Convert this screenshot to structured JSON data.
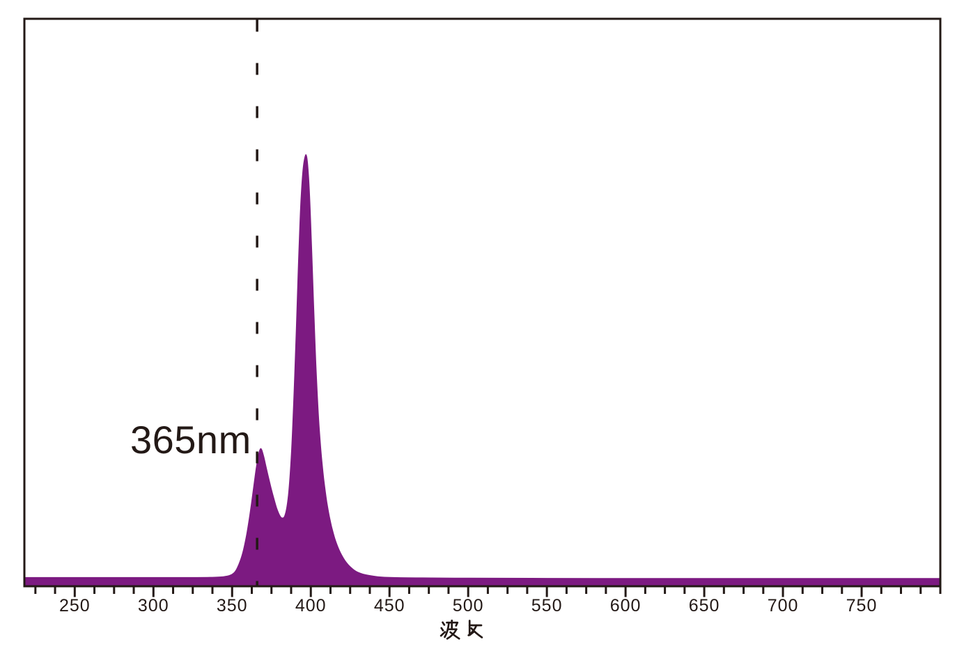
{
  "chart_data": {
    "type": "area",
    "title": "",
    "xlabel": "波长",
    "ylabel": "",
    "legend": "none",
    "grid": false,
    "x_axis": {
      "unit": "nm",
      "range": [
        218,
        800
      ],
      "major_ticks": [
        250,
        300,
        350,
        400,
        450,
        500,
        550,
        600,
        650,
        700,
        750
      ],
      "minor_tick_step_nm": 12.5
    },
    "y_axis": {
      "visible": false,
      "range": [
        0,
        1
      ]
    },
    "annotation": {
      "text": "365nm",
      "wavelength_nm": 365,
      "marker": "vertical-dashed-line"
    },
    "peaks": [
      {
        "wavelength_nm": 368,
        "relative_intensity": 0.32
      },
      {
        "wavelength_nm": 397,
        "relative_intensity": 1.0
      }
    ],
    "series": [
      {
        "name": "emission-spectrum",
        "color": "#7C1A81",
        "points": [
          [
            218,
            0.021
          ],
          [
            260,
            0.021
          ],
          [
            300,
            0.021
          ],
          [
            330,
            0.021
          ],
          [
            342,
            0.022
          ],
          [
            347,
            0.024
          ],
          [
            350,
            0.028
          ],
          [
            352,
            0.035
          ],
          [
            354,
            0.05
          ],
          [
            356,
            0.07
          ],
          [
            358,
            0.1
          ],
          [
            360,
            0.14
          ],
          [
            362,
            0.19
          ],
          [
            364,
            0.245
          ],
          [
            365,
            0.272
          ],
          [
            366,
            0.295
          ],
          [
            367,
            0.312
          ],
          [
            368,
            0.32
          ],
          [
            369,
            0.317
          ],
          [
            370,
            0.305
          ],
          [
            371,
            0.29
          ],
          [
            372,
            0.273
          ],
          [
            374,
            0.242
          ],
          [
            376,
            0.213
          ],
          [
            378,
            0.187
          ],
          [
            379,
            0.176
          ],
          [
            380,
            0.167
          ],
          [
            381,
            0.16
          ],
          [
            382,
            0.158
          ],
          [
            383,
            0.16
          ],
          [
            384,
            0.172
          ],
          [
            385,
            0.193
          ],
          [
            386,
            0.228
          ],
          [
            387,
            0.278
          ],
          [
            388,
            0.348
          ],
          [
            389,
            0.438
          ],
          [
            390,
            0.538
          ],
          [
            391,
            0.648
          ],
          [
            392,
            0.758
          ],
          [
            393,
            0.858
          ],
          [
            394,
            0.928
          ],
          [
            395,
            0.972
          ],
          [
            396,
            0.993
          ],
          [
            397,
            1.0
          ],
          [
            398,
            0.988
          ],
          [
            399,
            0.94
          ],
          [
            400,
            0.862
          ],
          [
            401,
            0.76
          ],
          [
            402,
            0.655
          ],
          [
            403,
            0.555
          ],
          [
            404,
            0.47
          ],
          [
            405,
            0.4
          ],
          [
            406,
            0.345
          ],
          [
            407,
            0.3
          ],
          [
            408,
            0.263
          ],
          [
            409,
            0.232
          ],
          [
            410,
            0.205
          ],
          [
            411,
            0.182
          ],
          [
            412,
            0.162
          ],
          [
            413,
            0.145
          ],
          [
            414,
            0.13
          ],
          [
            415,
            0.117
          ],
          [
            416,
            0.105
          ],
          [
            417,
            0.095
          ],
          [
            418,
            0.086
          ],
          [
            420,
            0.071
          ],
          [
            422,
            0.059
          ],
          [
            424,
            0.05
          ],
          [
            426,
            0.043
          ],
          [
            428,
            0.037
          ],
          [
            430,
            0.033
          ],
          [
            433,
            0.029
          ],
          [
            436,
            0.0265
          ],
          [
            440,
            0.024
          ],
          [
            445,
            0.022
          ],
          [
            452,
            0.021
          ],
          [
            462,
            0.0205
          ],
          [
            480,
            0.02
          ],
          [
            520,
            0.0195
          ],
          [
            560,
            0.019
          ],
          [
            620,
            0.019
          ],
          [
            700,
            0.019
          ],
          [
            760,
            0.019
          ],
          [
            800,
            0.019
          ]
        ]
      }
    ]
  },
  "colors": {
    "spectrum_fill": "#7C1A81",
    "axis_and_frame": "#231916",
    "text": "#231916",
    "background": "#FFFFFF",
    "marker_line": "#231916"
  }
}
